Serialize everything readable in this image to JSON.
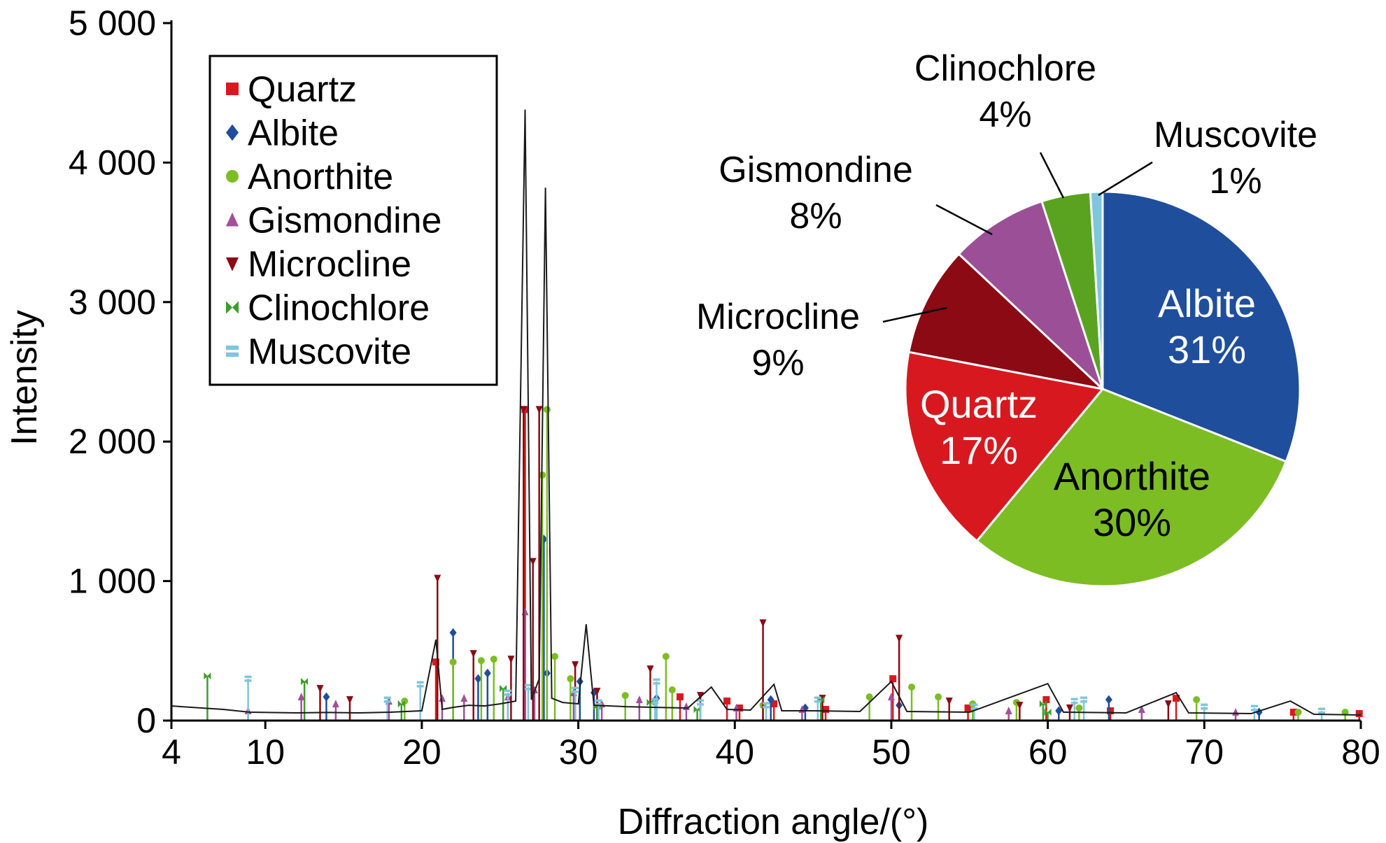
{
  "chart_data": [
    {
      "type": "line",
      "title": "",
      "xlabel": "Diffraction angle/(°)",
      "ylabel": "Intensity",
      "xlim": [
        4,
        80
      ],
      "ylim": [
        0,
        5000
      ],
      "x_ticks": [
        4,
        10,
        20,
        30,
        40,
        50,
        60,
        70,
        80
      ],
      "x_tick_labels": [
        "4",
        "10",
        "20",
        "30",
        "40",
        "50",
        "60",
        "70",
        "80"
      ],
      "y_ticks": [
        0,
        1000,
        2000,
        3000,
        4000,
        5000
      ],
      "y_tick_labels": [
        "0",
        "1 000",
        "2 000",
        "3 000",
        "4 000",
        "5 000"
      ],
      "grid": false,
      "legend": {
        "placement": "top-left",
        "entries": [
          {
            "label": "Quartz",
            "color": "#d7191f",
            "marker": "square"
          },
          {
            "label": "Albite",
            "color": "#1f4e9c",
            "marker": "diamond"
          },
          {
            "label": "Anorthite",
            "color": "#7cbd24",
            "marker": "circle"
          },
          {
            "label": "Gismondine",
            "color": "#a24f9c",
            "marker": "triangle-up"
          },
          {
            "label": "Microcline",
            "color": "#8b0a14",
            "marker": "triangle-down"
          },
          {
            "label": "Clinochlore",
            "color": "#3c9e2a",
            "marker": "bowtie"
          },
          {
            "label": "Muscovite",
            "color": "#7ec6dc",
            "marker": "double-bar"
          }
        ]
      },
      "baseline_pattern": {
        "color": "#1a1a1a",
        "points": [
          [
            4,
            105
          ],
          [
            6,
            90
          ],
          [
            7.3,
            80
          ],
          [
            9,
            60
          ],
          [
            12,
            55
          ],
          [
            14,
            58
          ],
          [
            16,
            55
          ],
          [
            18,
            60
          ],
          [
            20,
            70
          ],
          [
            20.9,
            580
          ],
          [
            21.3,
            80
          ],
          [
            22,
            95
          ],
          [
            23,
            110
          ],
          [
            24,
            105
          ],
          [
            25,
            120
          ],
          [
            26,
            140
          ],
          [
            26.6,
            4380
          ],
          [
            27.0,
            150
          ],
          [
            27.5,
            300
          ],
          [
            27.9,
            3820
          ],
          [
            28.3,
            160
          ],
          [
            29,
            130
          ],
          [
            30,
            120
          ],
          [
            30.5,
            690
          ],
          [
            31,
            110
          ],
          [
            33,
            100
          ],
          [
            35,
            95
          ],
          [
            37,
            90
          ],
          [
            38.5,
            240
          ],
          [
            39.5,
            80
          ],
          [
            41,
            75
          ],
          [
            42.5,
            260
          ],
          [
            43,
            70
          ],
          [
            45,
            70
          ],
          [
            48,
            65
          ],
          [
            50,
            280
          ],
          [
            51,
            65
          ],
          [
            55,
            60
          ],
          [
            60,
            265
          ],
          [
            61,
            60
          ],
          [
            65,
            55
          ],
          [
            68.2,
            200
          ],
          [
            69,
            55
          ],
          [
            73,
            50
          ],
          [
            75.5,
            140
          ],
          [
            77,
            45
          ],
          [
            80,
            40
          ]
        ]
      },
      "phase_peaks": {
        "Quartz": [
          [
            20.9,
            420
          ],
          [
            26.6,
            2230
          ],
          [
            36.5,
            170
          ],
          [
            39.5,
            140
          ],
          [
            40.3,
            90
          ],
          [
            42.5,
            120
          ],
          [
            45.8,
            80
          ],
          [
            50.1,
            300
          ],
          [
            54.9,
            90
          ],
          [
            59.9,
            150
          ],
          [
            64.0,
            70
          ],
          [
            68.2,
            160
          ],
          [
            75.7,
            60
          ],
          [
            79.9,
            50
          ]
        ],
        "Albite": [
          [
            13.9,
            170
          ],
          [
            22.0,
            630
          ],
          [
            23.6,
            300
          ],
          [
            24.2,
            340
          ],
          [
            27.8,
            1300
          ],
          [
            28.0,
            340
          ],
          [
            30.1,
            280
          ],
          [
            31.0,
            200
          ],
          [
            35.0,
            160
          ],
          [
            42.3,
            150
          ],
          [
            44.5,
            90
          ],
          [
            50.5,
            110
          ],
          [
            60.7,
            70
          ],
          [
            63.9,
            150
          ],
          [
            73.5,
            60
          ]
        ],
        "Anorthite": [
          [
            18.9,
            140
          ],
          [
            22.0,
            420
          ],
          [
            23.8,
            430
          ],
          [
            24.6,
            440
          ],
          [
            27.7,
            1760
          ],
          [
            28.0,
            2230
          ],
          [
            28.5,
            460
          ],
          [
            29.5,
            300
          ],
          [
            33.0,
            180
          ],
          [
            35.6,
            460
          ],
          [
            36.0,
            220
          ],
          [
            41.8,
            110
          ],
          [
            48.6,
            170
          ],
          [
            51.3,
            240
          ],
          [
            53.0,
            170
          ],
          [
            55.2,
            120
          ],
          [
            58.0,
            130
          ],
          [
            62.0,
            90
          ],
          [
            69.5,
            150
          ],
          [
            76.0,
            60
          ],
          [
            79.0,
            60
          ]
        ],
        "Gismondine": [
          [
            8.9,
            70
          ],
          [
            12.3,
            170
          ],
          [
            14.5,
            120
          ],
          [
            17.9,
            140
          ],
          [
            21.3,
            160
          ],
          [
            22.7,
            160
          ],
          [
            25.5,
            170
          ],
          [
            26.6,
            780
          ],
          [
            27.2,
            220
          ],
          [
            29.7,
            200
          ],
          [
            31.5,
            120
          ],
          [
            33.9,
            150
          ],
          [
            36.9,
            100
          ],
          [
            40.1,
            90
          ],
          [
            44.3,
            80
          ],
          [
            50.0,
            170
          ],
          [
            57.5,
            70
          ],
          [
            66.0,
            80
          ],
          [
            72.0,
            60
          ]
        ],
        "Microcline": [
          [
            13.5,
            230
          ],
          [
            15.4,
            150
          ],
          [
            21.0,
            1020
          ],
          [
            23.3,
            480
          ],
          [
            25.7,
            440
          ],
          [
            26.5,
            2230
          ],
          [
            27.1,
            1140
          ],
          [
            27.5,
            2230
          ],
          [
            29.8,
            400
          ],
          [
            31.2,
            210
          ],
          [
            34.6,
            370
          ],
          [
            37.8,
            180
          ],
          [
            41.8,
            700
          ],
          [
            45.6,
            160
          ],
          [
            50.5,
            590
          ],
          [
            53.7,
            140
          ],
          [
            58.2,
            110
          ],
          [
            61.4,
            90
          ],
          [
            67.7,
            120
          ]
        ],
        "Clinochlore": [
          [
            6.3,
            320
          ],
          [
            12.5,
            280
          ],
          [
            18.7,
            120
          ],
          [
            25.2,
            230
          ],
          [
            31.2,
            100
          ],
          [
            34.6,
            130
          ],
          [
            37.6,
            80
          ],
          [
            45.5,
            150
          ],
          [
            59.7,
            120
          ],
          [
            60.0,
            60
          ]
        ],
        "Muscovite": [
          [
            8.9,
            300
          ],
          [
            17.8,
            150
          ],
          [
            19.9,
            260
          ],
          [
            25.5,
            200
          ],
          [
            26.8,
            240
          ],
          [
            29.8,
            220
          ],
          [
            31.3,
            130
          ],
          [
            34.9,
            140
          ],
          [
            35.0,
            280
          ],
          [
            37.8,
            130
          ],
          [
            42.0,
            110
          ],
          [
            45.3,
            150
          ],
          [
            55.3,
            100
          ],
          [
            61.7,
            140
          ],
          [
            62.3,
            150
          ],
          [
            70.0,
            100
          ],
          [
            73.2,
            90
          ],
          [
            77.5,
            70
          ]
        ]
      }
    },
    {
      "type": "pie",
      "title": "",
      "slices": [
        {
          "name": "Albite",
          "value": 31,
          "label_pct": "31%",
          "color": "#1f4e9c",
          "label_color": "#ffffff",
          "label_position": "inside"
        },
        {
          "name": "Anorthite",
          "value": 30,
          "label_pct": "30%",
          "color": "#7cbd24",
          "label_color": "#000000",
          "label_position": "inside"
        },
        {
          "name": "Quartz",
          "value": 17,
          "label_pct": "17%",
          "color": "#d7191f",
          "label_color": "#ffffff",
          "label_position": "inside"
        },
        {
          "name": "Microcline",
          "value": 9,
          "label_pct": "9%",
          "color": "#8b0a14",
          "label_color": "#000000",
          "label_position": "outside"
        },
        {
          "name": "Gismondine",
          "value": 8,
          "label_pct": "8%",
          "color": "#9b4f96",
          "label_color": "#000000",
          "label_position": "outside"
        },
        {
          "name": "Clinochlore",
          "value": 4,
          "label_pct": "4%",
          "color": "#5aa321",
          "label_color": "#000000",
          "label_position": "outside"
        },
        {
          "name": "Muscovite",
          "value": 1,
          "label_pct": "1%",
          "color": "#7ec6dc",
          "label_color": "#000000",
          "label_position": "outside"
        }
      ]
    }
  ]
}
